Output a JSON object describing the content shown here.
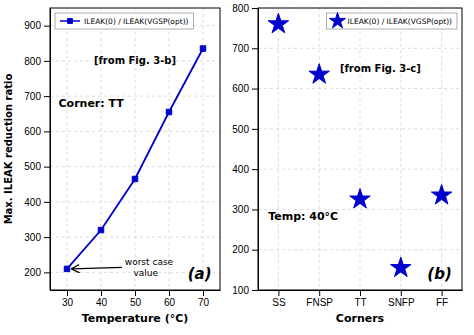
{
  "chart_data": [
    {
      "type": "line",
      "x": [
        30,
        40,
        50,
        60,
        70
      ],
      "series": [
        {
          "name": "ILEAK(0) / ILEAK(VGSP(opt))",
          "color": "#0000cc",
          "marker": "square",
          "values": [
            210,
            320,
            465,
            655,
            835
          ]
        }
      ],
      "x_label": "Temperature (°C)",
      "y_label": "Max. ILEAK reduction ratio",
      "xlim": [
        25,
        75
      ],
      "ylim": [
        150,
        950
      ],
      "xticks": [
        30,
        40,
        50,
        60,
        70
      ],
      "yticks": [
        200,
        300,
        400,
        500,
        600,
        700,
        800,
        900
      ],
      "grid": true,
      "legend": "upper left",
      "annotations": [
        "[from Fig. 3-b]",
        "Corner: TT",
        "worst case\n   value",
        "(a)"
      ]
    },
    {
      "type": "scatter",
      "categories": [
        "SS",
        "FNSP",
        "TT",
        "SNFP",
        "FF"
      ],
      "series": [
        {
          "name": "ILEAK(0) / ILEAK(VGSP(opt))",
          "color": "#0000cc",
          "marker": "star",
          "values": [
            760,
            635,
            325,
            155,
            335
          ]
        }
      ],
      "x_label": "Corners",
      "ylim": [
        100,
        800
      ],
      "yticks": [
        100,
        200,
        300,
        400,
        500,
        600,
        700,
        800
      ],
      "grid": true,
      "legend": "upper right",
      "annotations": [
        "[from Fig. 3-c]",
        "Temp: 40°C",
        "(b)"
      ]
    }
  ]
}
